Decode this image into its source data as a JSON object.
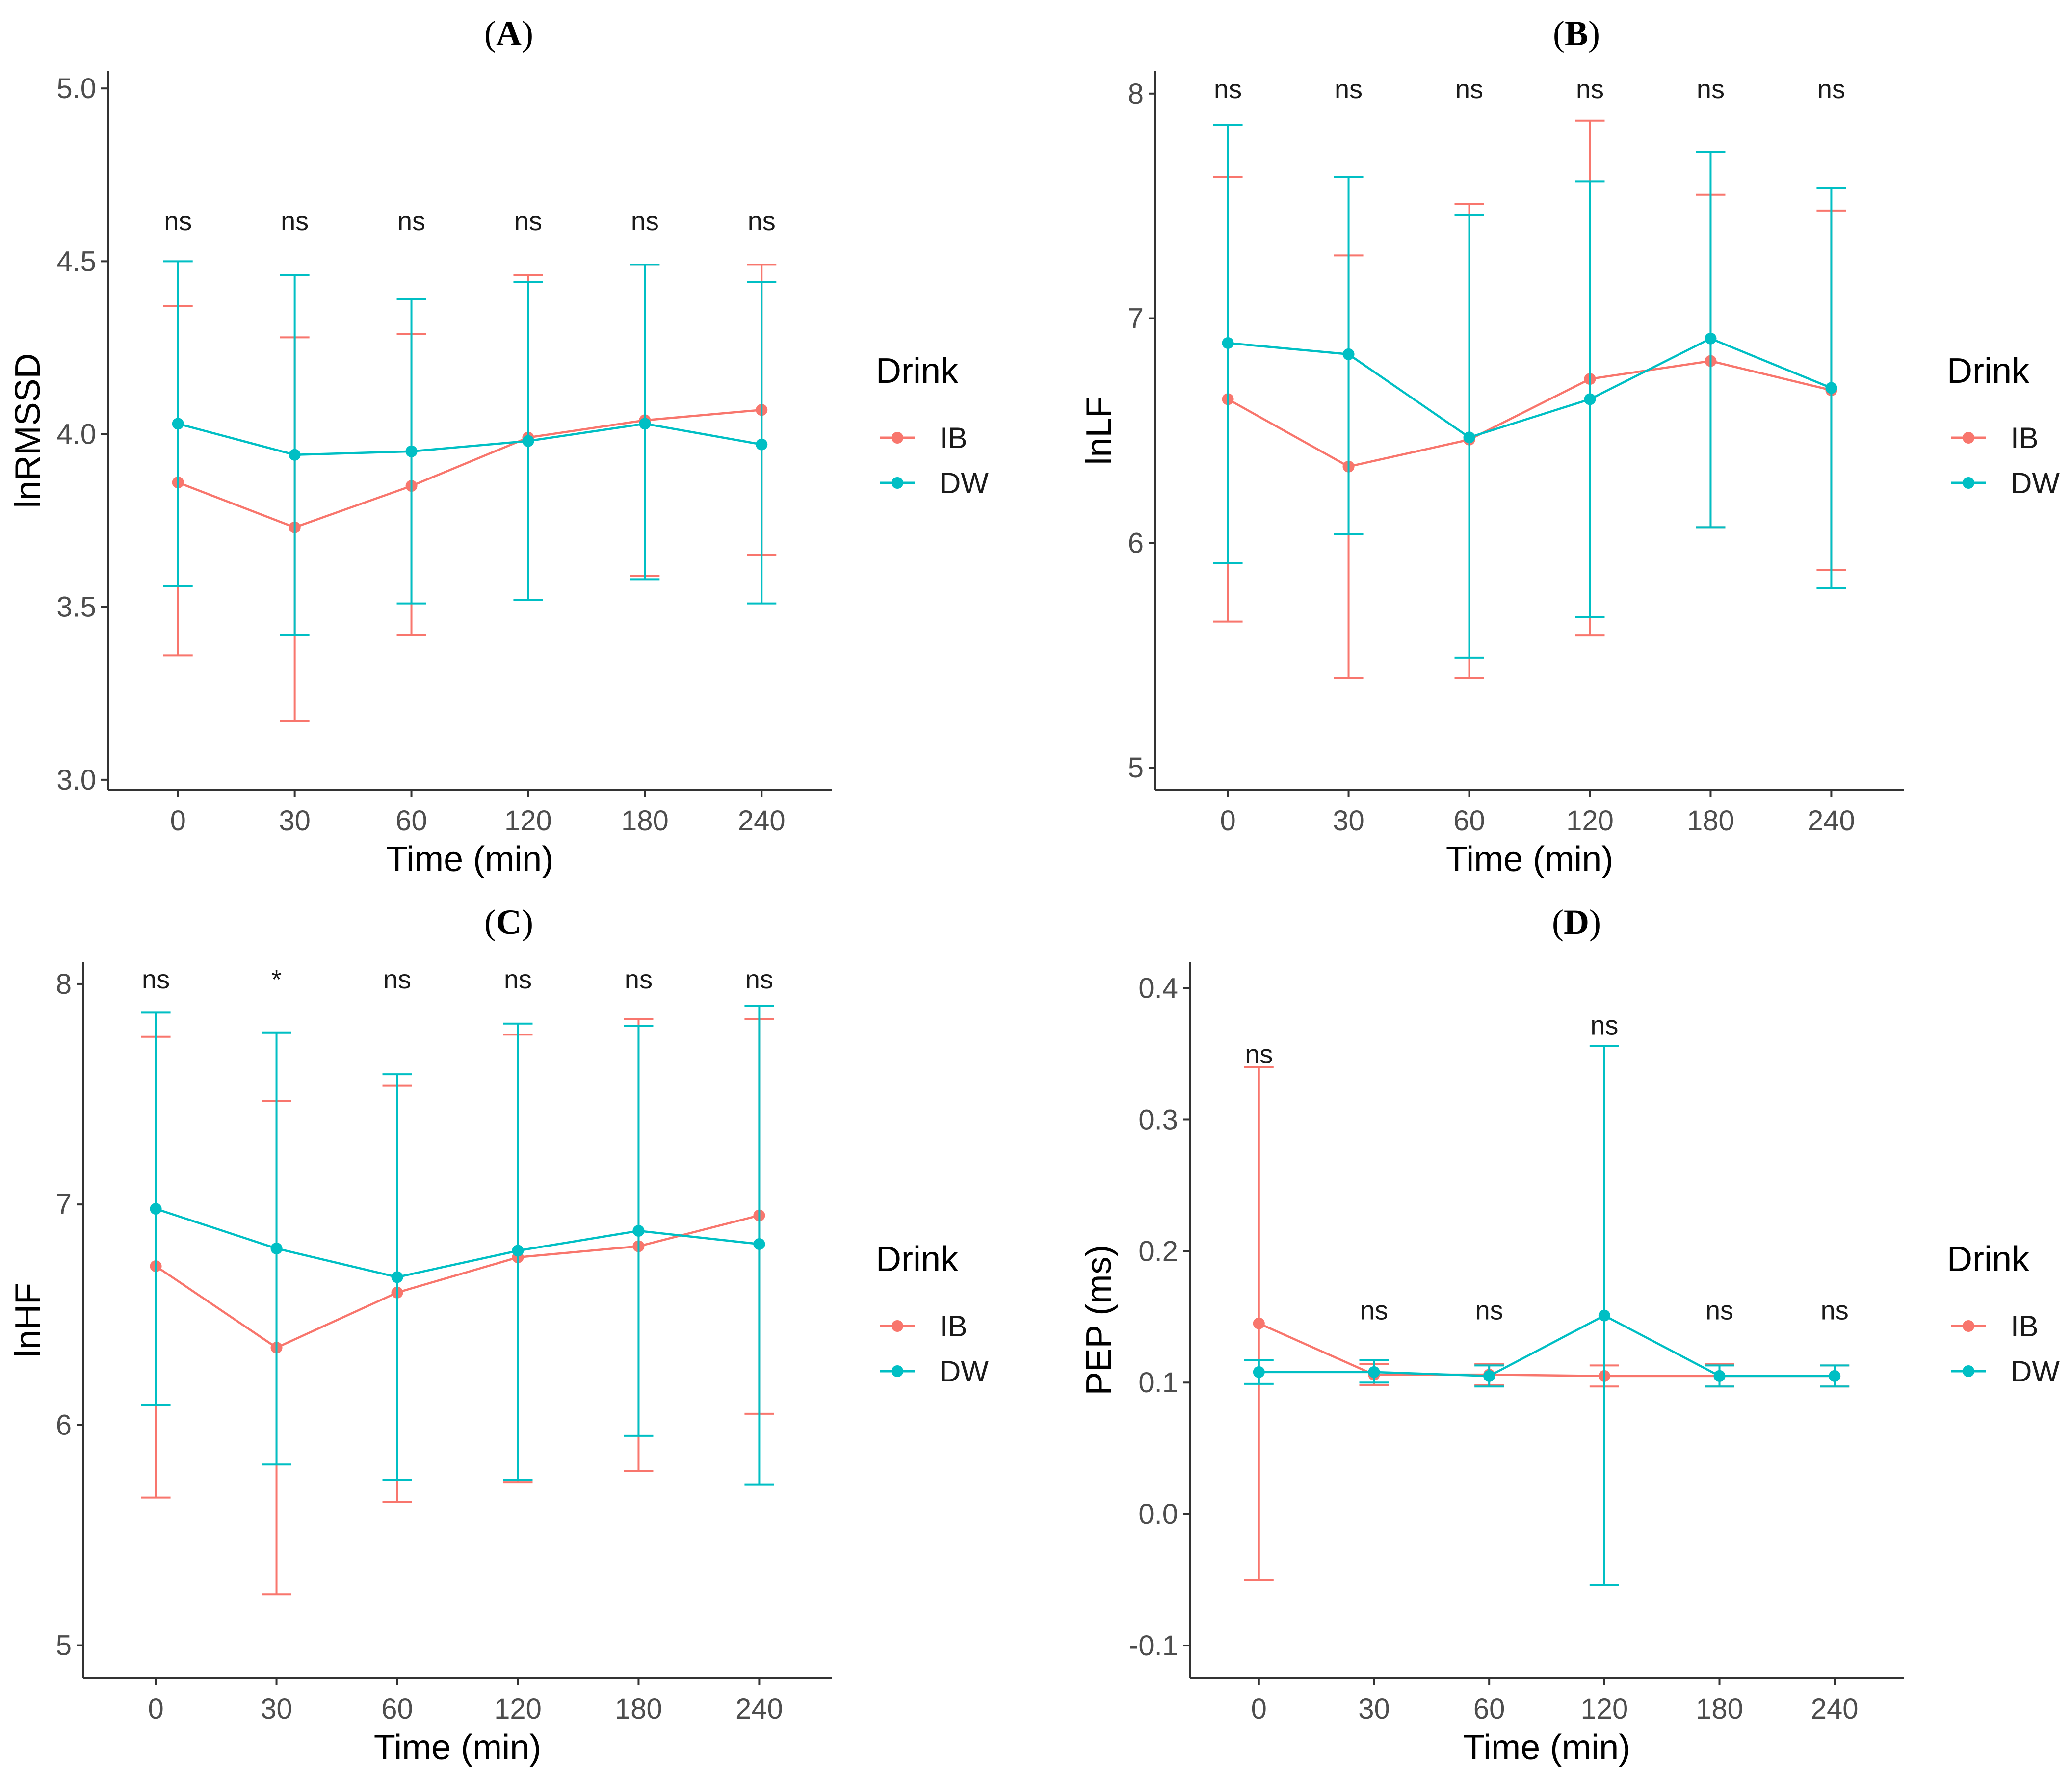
{
  "palette": {
    "IB": "#F8766D",
    "DW": "#00BFC4",
    "axis": "#333333",
    "tick_text": "#4d4d4d"
  },
  "chart_data": [
    {
      "type": "line",
      "panel": "A",
      "title": "A",
      "xlabel": "Time (min)",
      "ylabel": "lnRMSSD",
      "categories": [
        "0",
        "30",
        "60",
        "120",
        "180",
        "240"
      ],
      "ylim": [
        2.97,
        5.05
      ],
      "yticks": [
        3.0,
        3.5,
        4.0,
        4.5,
        5.0
      ],
      "ytick_labels": [
        "3.0",
        "3.5",
        "4.0",
        "4.5",
        "5.0"
      ],
      "annotations": [
        "ns",
        "ns",
        "ns",
        "ns",
        "ns",
        "ns"
      ],
      "annotation_y": [
        4.59,
        4.59,
        4.59,
        4.59,
        4.59,
        4.59
      ],
      "legend": {
        "title": "Drink",
        "position": "right"
      },
      "grid": false,
      "series": [
        {
          "name": "IB",
          "values": [
            3.86,
            3.73,
            3.85,
            3.99,
            4.04,
            4.07
          ],
          "lower": [
            3.36,
            3.17,
            3.42,
            3.52,
            3.59,
            3.65
          ],
          "upper": [
            4.37,
            4.28,
            4.29,
            4.46,
            4.49,
            4.49
          ]
        },
        {
          "name": "DW",
          "values": [
            4.03,
            3.94,
            3.95,
            3.98,
            4.03,
            3.97
          ],
          "lower": [
            3.56,
            3.42,
            3.51,
            3.52,
            3.58,
            3.51
          ],
          "upper": [
            4.5,
            4.46,
            4.39,
            4.44,
            4.49,
            4.44
          ]
        }
      ]
    },
    {
      "type": "line",
      "panel": "B",
      "title": "B",
      "xlabel": "Time (min)",
      "ylabel": "lnLF",
      "categories": [
        "0",
        "30",
        "60",
        "120",
        "180",
        "240"
      ],
      "ylim": [
        4.9,
        8.1
      ],
      "yticks": [
        5,
        6,
        7,
        8
      ],
      "ytick_labels": [
        "5",
        "6",
        "7",
        "8"
      ],
      "annotations": [
        "ns",
        "ns",
        "ns",
        "ns",
        "ns",
        "ns"
      ],
      "annotation_y": [
        7.98,
        7.98,
        7.98,
        7.98,
        7.98,
        7.98
      ],
      "legend": {
        "title": "Drink",
        "position": "right"
      },
      "grid": false,
      "series": [
        {
          "name": "IB",
          "values": [
            6.64,
            6.34,
            6.46,
            6.73,
            6.81,
            6.68
          ],
          "lower": [
            5.65,
            5.4,
            5.4,
            5.59,
            6.07,
            5.88
          ],
          "upper": [
            7.63,
            7.28,
            7.51,
            7.88,
            7.55,
            7.48
          ]
        },
        {
          "name": "DW",
          "values": [
            6.89,
            6.84,
            6.47,
            6.64,
            6.91,
            6.69
          ],
          "lower": [
            5.91,
            6.04,
            5.49,
            5.67,
            6.07,
            5.8
          ],
          "upper": [
            7.86,
            7.63,
            7.46,
            7.61,
            7.74,
            7.58
          ]
        }
      ]
    },
    {
      "type": "line",
      "panel": "C",
      "title": "C",
      "xlabel": "Time (min)",
      "ylabel": "lnHF",
      "categories": [
        "0",
        "30",
        "60",
        "120",
        "180",
        "240"
      ],
      "ylim": [
        4.85,
        8.1
      ],
      "yticks": [
        5,
        6,
        7,
        8
      ],
      "ytick_labels": [
        "5",
        "6",
        "7",
        "8"
      ],
      "annotations": [
        "ns",
        "*",
        "ns",
        "ns",
        "ns",
        "ns"
      ],
      "annotation_y": [
        7.98,
        7.98,
        7.98,
        7.98,
        7.98,
        7.98
      ],
      "legend": {
        "title": "Drink",
        "position": "right"
      },
      "grid": false,
      "series": [
        {
          "name": "IB",
          "values": [
            6.72,
            6.35,
            6.6,
            6.76,
            6.81,
            6.95
          ],
          "lower": [
            5.67,
            5.23,
            5.65,
            5.74,
            5.79,
            6.05
          ],
          "upper": [
            7.76,
            7.47,
            7.54,
            7.77,
            7.84,
            7.84
          ]
        },
        {
          "name": "DW",
          "values": [
            6.98,
            6.8,
            6.67,
            6.79,
            6.88,
            6.82
          ],
          "lower": [
            6.09,
            5.82,
            5.75,
            5.75,
            5.95,
            5.73
          ],
          "upper": [
            7.87,
            7.78,
            7.59,
            7.82,
            7.81,
            7.9
          ]
        }
      ]
    },
    {
      "type": "line",
      "panel": "D",
      "title": "D",
      "xlabel": "Time (min)",
      "ylabel": "PEP (ms)",
      "categories": [
        "0",
        "30",
        "60",
        "120",
        "180",
        "240"
      ],
      "ylim": [
        -0.125,
        0.42
      ],
      "yticks": [
        -0.1,
        0.0,
        0.1,
        0.2,
        0.3,
        0.4
      ],
      "ytick_labels": [
        "-0.1",
        "0.0",
        "0.1",
        "0.2",
        "0.3",
        "0.4"
      ],
      "annotations": [
        "ns",
        "ns",
        "ns",
        "ns",
        "ns",
        "ns"
      ],
      "annotation_y": [
        0.343,
        0.148,
        0.148,
        0.365,
        0.148,
        0.148
      ],
      "legend": {
        "title": "Drink",
        "position": "right"
      },
      "grid": false,
      "series": [
        {
          "name": "IB",
          "values": [
            0.145,
            0.106,
            0.106,
            0.105,
            0.105,
            0.105
          ],
          "lower": [
            -0.05,
            0.098,
            0.098,
            0.097,
            0.097,
            0.097
          ],
          "upper": [
            0.34,
            0.114,
            0.114,
            0.113,
            0.114,
            0.113
          ]
        },
        {
          "name": "DW",
          "values": [
            0.108,
            0.108,
            0.105,
            0.151,
            0.105,
            0.105
          ],
          "lower": [
            0.099,
            0.1,
            0.097,
            -0.054,
            0.097,
            0.097
          ],
          "upper": [
            0.117,
            0.117,
            0.113,
            0.356,
            0.113,
            0.113
          ]
        }
      ]
    }
  ]
}
